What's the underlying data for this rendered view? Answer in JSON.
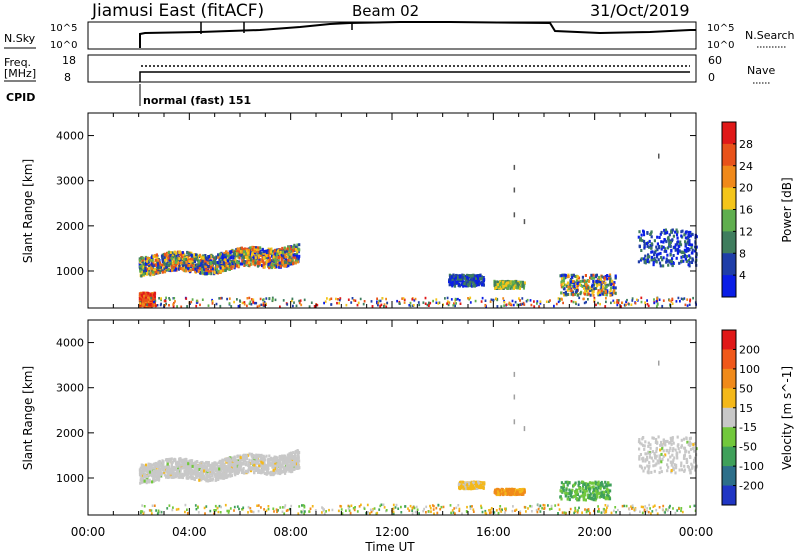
{
  "header": {
    "station": "Jiamusi East (fitACF)",
    "beam": "Beam 02",
    "date": "31/Oct/2019"
  },
  "status_panels": {
    "nsky_label": "N.Sky",
    "nsky_ticks": [
      "10^5",
      "10^0"
    ],
    "nsearch_label": "N.Search",
    "freq_label_1": "Freq.",
    "freq_label_2": "[MHz]",
    "freq_ticks": [
      "18",
      "8"
    ],
    "nave_label": "Nave",
    "nave_ticks": [
      "60",
      "0"
    ],
    "cpid_label": "CPID",
    "cpid_value": "normal (fast) 151"
  },
  "chart_data": [
    {
      "type": "heatmap",
      "panel": "power",
      "ylabel": "Slant Range [km]",
      "y_ticks": [
        "4000",
        "3000",
        "2000",
        "1000"
      ],
      "ylim": [
        180,
        4500
      ],
      "xlim": [
        0,
        24
      ],
      "colorbar_label": "Power [dB]",
      "colorbar_ticks": [
        "28",
        "24",
        "20",
        "16",
        "12",
        "8",
        "4"
      ],
      "colors": [
        "#0a1ee6",
        "#1f3ea8",
        "#3f7d5e",
        "#5fae4e",
        "#f4c51a",
        "#f0891a",
        "#e8521a",
        "#e01818"
      ],
      "regions": [
        {
          "t": [
            2.0,
            8.3
          ],
          "range_km": [
            1000,
            1500
          ],
          "level": "mixed 4-24"
        },
        {
          "t": [
            2.0,
            2.6
          ],
          "range_km": [
            200,
            500
          ],
          "level": "high"
        },
        {
          "t": [
            14.2,
            15.6
          ],
          "range_km": [
            650,
            900
          ],
          "level": "low"
        },
        {
          "t": [
            16.0,
            17.2
          ],
          "range_km": [
            600,
            760
          ],
          "level": "medium"
        },
        {
          "t": [
            18.6,
            20.8
          ],
          "range_km": [
            450,
            900
          ],
          "level": "mixed"
        },
        {
          "t": [
            21.7,
            24.0
          ],
          "range_km": [
            1100,
            1900
          ],
          "level": "low"
        }
      ]
    },
    {
      "type": "heatmap",
      "panel": "velocity",
      "xlabel": "Time UT",
      "x_ticks": [
        "00:00",
        "04:00",
        "08:00",
        "12:00",
        "16:00",
        "20:00",
        "00:00"
      ],
      "ylabel": "Slant Range [km]",
      "y_ticks": [
        "4000",
        "3000",
        "2000",
        "1000"
      ],
      "ylim": [
        180,
        4500
      ],
      "xlim": [
        0,
        24
      ],
      "colorbar_label": "Velocity [m s^-1]",
      "colorbar_ticks": [
        "200",
        "100",
        "50",
        "15",
        "-15",
        "-50",
        "-100",
        "-200"
      ],
      "colors": [
        "#e01818",
        "#f0581a",
        "#f08a1a",
        "#f4b81a",
        "#c8c8c8",
        "#72c83c",
        "#3fa05a",
        "#2d6f8a",
        "#2036c4"
      ],
      "regions": [
        {
          "t": [
            2.0,
            8.3
          ],
          "range_km": [
            1000,
            1500
          ],
          "level": "ground scatter (grey)"
        },
        {
          "t": [
            14.6,
            15.6
          ],
          "range_km": [
            750,
            900
          ],
          "level": "-50 to -15"
        },
        {
          "t": [
            16.0,
            17.2
          ],
          "range_km": [
            620,
            740
          ],
          "level": "-100 to -50"
        },
        {
          "t": [
            18.6,
            20.6
          ],
          "range_km": [
            500,
            900
          ],
          "level": "15 to 100"
        },
        {
          "t": [
            21.7,
            24.0
          ],
          "range_km": [
            1100,
            1900
          ],
          "level": "grey"
        }
      ]
    }
  ]
}
